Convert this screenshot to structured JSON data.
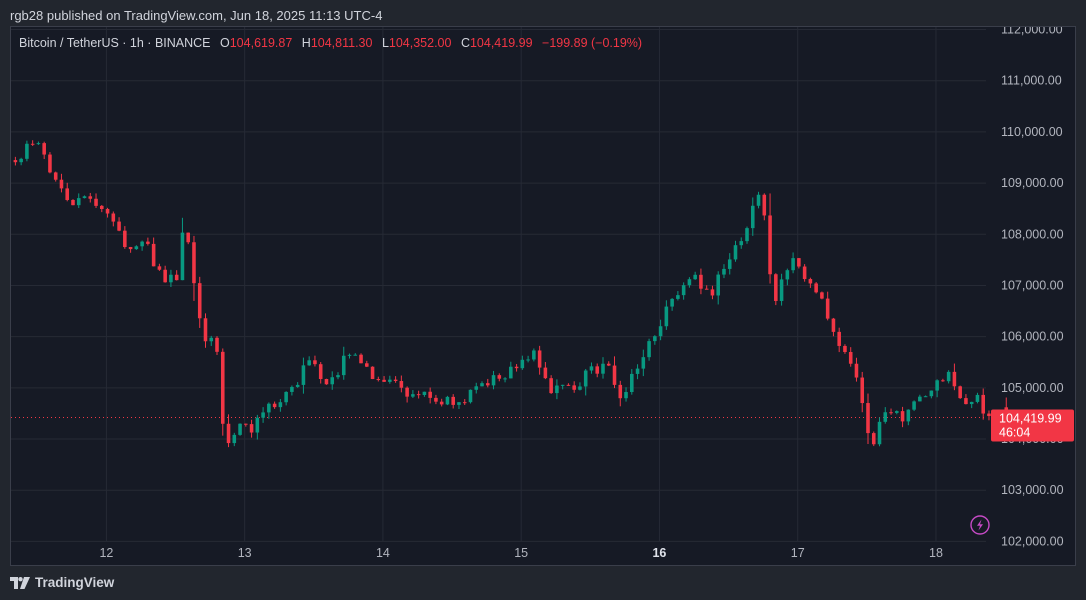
{
  "header": {
    "publish_line": "rgb28 published on TradingView.com, Jun 18, 2025 11:13 UTC-4"
  },
  "legend": {
    "symbol": "Bitcoin / TetherUS · 1h · BINANCE",
    "o_label": "O",
    "o_value": "104,619.87",
    "h_label": "H",
    "h_value": "104,811.30",
    "l_label": "L",
    "l_value": "104,352.00",
    "c_label": "C",
    "c_value": "104,419.99",
    "change": "−199.89 (−0.19%)"
  },
  "price_tag": {
    "price": "104,419.99",
    "countdown": "46:04"
  },
  "footer": {
    "brand": "TradingView"
  },
  "colors": {
    "up": "#089981",
    "down": "#f23645",
    "background": "#161a25",
    "grid": "#262a35",
    "axis_text": "#b2b5be"
  },
  "icons": {
    "replay": "lightning-bolt-icon",
    "brand": "tradingview-logo-icon"
  },
  "chart_data": {
    "type": "candlestick",
    "title": "",
    "xlabel": "",
    "ylabel": "",
    "y_ticks": [
      "102,000.00",
      "103,000.00",
      "104,000.00",
      "105,000.00",
      "106,000.00",
      "107,000.00",
      "108,000.00",
      "109,000.00",
      "110,000.00",
      "111,000.00",
      "112,000.00"
    ],
    "x_ticks": [
      {
        "label": "12",
        "day": 12,
        "bold": false
      },
      {
        "label": "13",
        "day": 13,
        "bold": false
      },
      {
        "label": "14",
        "day": 14,
        "bold": false
      },
      {
        "label": "15",
        "day": 15,
        "bold": false
      },
      {
        "label": "16",
        "day": 16,
        "bold": true
      },
      {
        "label": "17",
        "day": 17,
        "bold": false
      },
      {
        "label": "18",
        "day": 18,
        "bold": false
      }
    ],
    "ylim": [
      101500,
      112050
    ],
    "xlim_days": [
      11.31,
      19.02
    ],
    "current_price": 104419.99,
    "grid": true,
    "close_path": [
      [
        11.3,
        109450
      ],
      [
        11.38,
        109500
      ],
      [
        11.45,
        109900
      ],
      [
        11.52,
        109800
      ],
      [
        11.6,
        109200
      ],
      [
        11.68,
        108900
      ],
      [
        11.75,
        108700
      ],
      [
        11.83,
        108600
      ],
      [
        11.9,
        108700
      ],
      [
        11.97,
        108500
      ],
      [
        12.05,
        108200
      ],
      [
        12.1,
        107900
      ],
      [
        12.2,
        107800
      ],
      [
        12.3,
        107700
      ],
      [
        12.4,
        107200
      ],
      [
        12.5,
        107050
      ],
      [
        12.52,
        107400
      ],
      [
        12.56,
        108300
      ],
      [
        12.6,
        107600
      ],
      [
        12.66,
        106700
      ],
      [
        12.72,
        105800
      ],
      [
        12.77,
        105900
      ],
      [
        12.8,
        105700
      ],
      [
        12.84,
        104400
      ],
      [
        12.88,
        103900
      ],
      [
        12.92,
        104000
      ],
      [
        12.96,
        104300
      ],
      [
        13.0,
        104200
      ],
      [
        13.05,
        104000
      ],
      [
        13.1,
        104500
      ],
      [
        13.18,
        104700
      ],
      [
        13.25,
        104800
      ],
      [
        13.32,
        104900
      ],
      [
        13.38,
        105100
      ],
      [
        13.45,
        105600
      ],
      [
        13.52,
        105300
      ],
      [
        13.6,
        105100
      ],
      [
        13.66,
        105200
      ],
      [
        13.72,
        105600
      ],
      [
        13.78,
        105800
      ],
      [
        13.84,
        105400
      ],
      [
        13.92,
        105300
      ],
      [
        14.0,
        105100
      ],
      [
        14.1,
        105050
      ],
      [
        14.2,
        104900
      ],
      [
        14.3,
        105000
      ],
      [
        14.4,
        104800
      ],
      [
        14.48,
        104700
      ],
      [
        14.53,
        104550
      ],
      [
        14.58,
        104700
      ],
      [
        14.64,
        104850
      ],
      [
        14.7,
        105000
      ],
      [
        14.8,
        105200
      ],
      [
        14.9,
        105300
      ],
      [
        14.98,
        105300
      ],
      [
        15.03,
        105600
      ],
      [
        15.08,
        105800
      ],
      [
        15.14,
        105300
      ],
      [
        15.2,
        104900
      ],
      [
        15.3,
        104950
      ],
      [
        15.4,
        105100
      ],
      [
        15.5,
        105300
      ],
      [
        15.6,
        105500
      ],
      [
        15.66,
        105300
      ],
      [
        15.7,
        104700
      ],
      [
        15.76,
        105000
      ],
      [
        15.84,
        105400
      ],
      [
        15.9,
        105700
      ],
      [
        15.96,
        105900
      ],
      [
        16.02,
        106300
      ],
      [
        16.08,
        106700
      ],
      [
        16.16,
        107000
      ],
      [
        16.24,
        107200
      ],
      [
        16.3,
        106900
      ],
      [
        16.36,
        106800
      ],
      [
        16.42,
        107100
      ],
      [
        16.5,
        107500
      ],
      [
        16.58,
        107800
      ],
      [
        16.64,
        108200
      ],
      [
        16.7,
        108800
      ],
      [
        16.74,
        108600
      ],
      [
        16.78,
        108000
      ],
      [
        16.8,
        107200
      ],
      [
        16.84,
        106700
      ],
      [
        16.9,
        107200
      ],
      [
        16.96,
        107600
      ],
      [
        17.04,
        107300
      ],
      [
        17.12,
        106900
      ],
      [
        17.2,
        106500
      ],
      [
        17.26,
        106100
      ],
      [
        17.32,
        105700
      ],
      [
        17.38,
        105400
      ],
      [
        17.44,
        105000
      ],
      [
        17.48,
        104500
      ],
      [
        17.52,
        103800
      ],
      [
        17.56,
        104000
      ],
      [
        17.6,
        104400
      ],
      [
        17.68,
        104600
      ],
      [
        17.74,
        104300
      ],
      [
        17.8,
        104500
      ],
      [
        17.88,
        104800
      ],
      [
        17.96,
        105000
      ],
      [
        18.04,
        105200
      ],
      [
        18.1,
        105300
      ],
      [
        18.16,
        105000
      ],
      [
        18.22,
        104700
      ],
      [
        18.3,
        104800
      ],
      [
        18.36,
        104550
      ],
      [
        18.42,
        104300
      ],
      [
        18.47,
        104500
      ],
      [
        18.5,
        104420
      ]
    ]
  }
}
